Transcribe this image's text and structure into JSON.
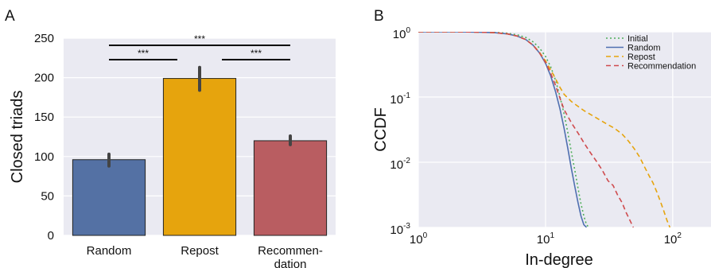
{
  "chart_data": [
    {
      "panel": "A",
      "type": "bar",
      "categories": [
        "Random",
        "Repost",
        "Recommen-\ndation"
      ],
      "values": [
        96,
        199,
        120
      ],
      "error_bars": [
        [
          88,
          103
        ],
        [
          184,
          213
        ],
        [
          115,
          126
        ]
      ],
      "colors": [
        "#5471a4",
        "#e6a40d",
        "#b95d61"
      ],
      "title": "",
      "xlabel": "",
      "ylabel": "Closed triads",
      "ylim": [
        0,
        250
      ],
      "yticks": [
        0,
        50,
        100,
        150,
        200,
        250
      ],
      "grid": true,
      "significance": [
        {
          "from": 0,
          "to": 1,
          "label": "***"
        },
        {
          "from": 1,
          "to": 2,
          "label": "***"
        },
        {
          "from": 0,
          "to": 2,
          "label": "***"
        }
      ]
    },
    {
      "panel": "B",
      "type": "line",
      "title": "",
      "xlabel": "In-degree",
      "ylabel": "CCDF",
      "xscale": "log",
      "yscale": "log",
      "xlim": [
        1,
        200
      ],
      "ylim": [
        0.001,
        1.0
      ],
      "xticks": [
        {
          "value": 1,
          "base": "10",
          "exp": "0"
        },
        {
          "value": 10,
          "base": "10",
          "exp": "1"
        },
        {
          "value": 100,
          "base": "10",
          "exp": "2"
        }
      ],
      "yticks": [
        {
          "value": 1,
          "base": "10",
          "exp": "0"
        },
        {
          "value": 0.1,
          "base": "10",
          "exp": "-1"
        },
        {
          "value": 0.01,
          "base": "10",
          "exp": "-2"
        },
        {
          "value": 0.001,
          "base": "10",
          "exp": "-3"
        }
      ],
      "grid": true,
      "legend_position": "top-right",
      "series": [
        {
          "name": "Initial",
          "color": "#4fae5b",
          "dash": "dotted",
          "x": [
            1,
            2,
            3,
            4,
            5,
            6,
            7,
            8,
            9,
            10,
            11,
            12,
            13,
            14,
            15,
            16,
            17,
            18,
            19,
            20,
            21,
            22
          ],
          "y": [
            1.0,
            1.0,
            1.0,
            0.98,
            0.95,
            0.9,
            0.82,
            0.7,
            0.56,
            0.42,
            0.29,
            0.18,
            0.1,
            0.055,
            0.028,
            0.014,
            0.0075,
            0.004,
            0.0023,
            0.0015,
            0.0011,
            0.001
          ]
        },
        {
          "name": "Random",
          "color": "#4f6fb0",
          "dash": "solid",
          "x": [
            1,
            2,
            3,
            4,
            5,
            6,
            7,
            8,
            9,
            10,
            11,
            12,
            13,
            14,
            15,
            16,
            17,
            18,
            19,
            20,
            21
          ],
          "y": [
            1.0,
            1.0,
            0.99,
            0.97,
            0.93,
            0.86,
            0.76,
            0.62,
            0.47,
            0.33,
            0.21,
            0.12,
            0.065,
            0.033,
            0.016,
            0.0078,
            0.0042,
            0.0024,
            0.0015,
            0.0011,
            0.001
          ]
        },
        {
          "name": "Repost",
          "color": "#e6a40d",
          "dash": "dashed",
          "x": [
            1,
            2,
            3,
            4,
            5,
            6,
            7,
            8,
            9,
            10,
            11,
            12,
            13,
            14,
            16,
            20,
            25,
            30,
            35,
            40,
            45,
            50,
            55,
            60,
            65,
            70,
            75,
            80,
            85,
            90,
            95
          ],
          "y": [
            1.0,
            1.0,
            0.99,
            0.97,
            0.93,
            0.86,
            0.76,
            0.62,
            0.48,
            0.36,
            0.26,
            0.19,
            0.14,
            0.11,
            0.085,
            0.062,
            0.048,
            0.039,
            0.033,
            0.027,
            0.021,
            0.016,
            0.012,
            0.0085,
            0.0063,
            0.0048,
            0.0035,
            0.0025,
            0.0018,
            0.0013,
            0.001
          ]
        },
        {
          "name": "Recommendation",
          "color": "#cf4b4e",
          "dash": "dashed",
          "x": [
            1,
            2,
            3,
            4,
            5,
            6,
            7,
            8,
            9,
            10,
            11,
            12,
            13,
            14,
            16,
            18,
            20,
            22,
            25,
            28,
            31,
            34,
            37,
            40,
            43,
            46,
            49
          ],
          "y": [
            1.0,
            1.0,
            0.99,
            0.97,
            0.93,
            0.86,
            0.76,
            0.62,
            0.47,
            0.34,
            0.23,
            0.15,
            0.095,
            0.064,
            0.04,
            0.028,
            0.02,
            0.015,
            0.0105,
            0.0075,
            0.0052,
            0.0044,
            0.0031,
            0.0024,
            0.0017,
            0.0013,
            0.001
          ]
        }
      ]
    }
  ],
  "labels": {
    "panel_a": "A",
    "panel_b": "B"
  }
}
